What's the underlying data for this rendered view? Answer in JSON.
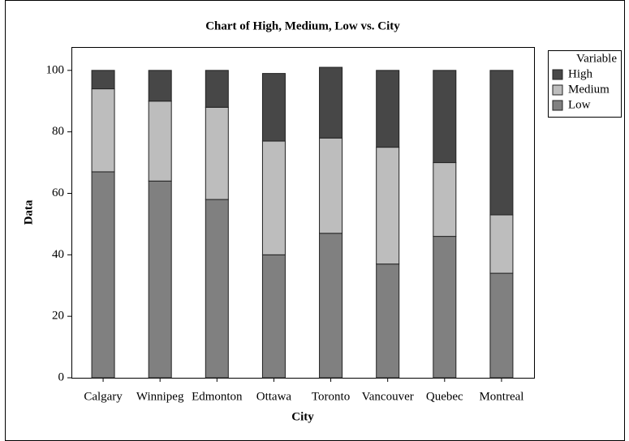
{
  "chart_data": {
    "type": "stacked_bar",
    "title": "Chart of High, Medium, Low vs. City",
    "x_label": "City",
    "y_label": "Data",
    "legend_title": "Variable",
    "categories": [
      "Calgary",
      "Winnipeg",
      "Edmonton",
      "Ottawa",
      "Toronto",
      "Vancouver",
      "Quebec",
      "Montreal"
    ],
    "series": [
      {
        "name": "High",
        "color": "#474747",
        "values": [
          6,
          10,
          12,
          22,
          23,
          25,
          30,
          47
        ]
      },
      {
        "name": "Medium",
        "color": "#bdbdbd",
        "values": [
          27,
          26,
          30,
          37,
          31,
          38,
          24,
          19
        ]
      },
      {
        "name": "Low",
        "color": "#808080",
        "values": [
          67,
          64,
          58,
          40,
          47,
          37,
          46,
          34
        ]
      }
    ],
    "ylim": [
      0,
      107.6
    ],
    "yticks": [
      0,
      20,
      40,
      60,
      80,
      100
    ],
    "grid": false,
    "legend": "right"
  }
}
